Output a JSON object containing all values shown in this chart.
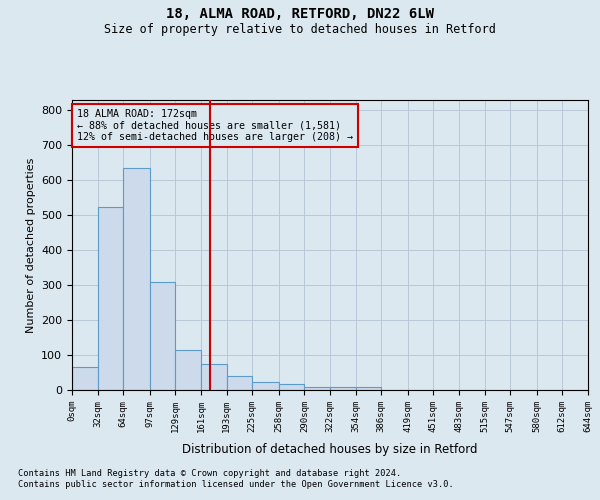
{
  "title1": "18, ALMA ROAD, RETFORD, DN22 6LW",
  "title2": "Size of property relative to detached houses in Retford",
  "xlabel": "Distribution of detached houses by size in Retford",
  "ylabel": "Number of detached properties",
  "footnote1": "Contains HM Land Registry data © Crown copyright and database right 2024.",
  "footnote2": "Contains public sector information licensed under the Open Government Licence v3.0.",
  "annotation_line1": "18 ALMA ROAD: 172sqm",
  "annotation_line2": "← 88% of detached houses are smaller (1,581)",
  "annotation_line3": "12% of semi-detached houses are larger (208) →",
  "property_size": 172,
  "bin_edges": [
    0,
    32,
    64,
    97,
    129,
    161,
    193,
    225,
    258,
    290,
    322,
    354,
    386,
    419,
    451,
    483,
    515,
    547,
    580,
    612,
    644
  ],
  "bar_heights": [
    65,
    525,
    635,
    310,
    115,
    75,
    40,
    22,
    18,
    10,
    10,
    8,
    0,
    0,
    0,
    0,
    0,
    0,
    0,
    0
  ],
  "bar_color": "#ccdaeb",
  "bar_edge_color": "#5a9bc8",
  "grid_color": "#b8c8d8",
  "vline_color": "#cc0000",
  "annotation_box_color": "#cc0000",
  "background_color": "#dce8f0",
  "ylim": [
    0,
    830
  ],
  "yticks": [
    0,
    100,
    200,
    300,
    400,
    500,
    600,
    700,
    800
  ]
}
